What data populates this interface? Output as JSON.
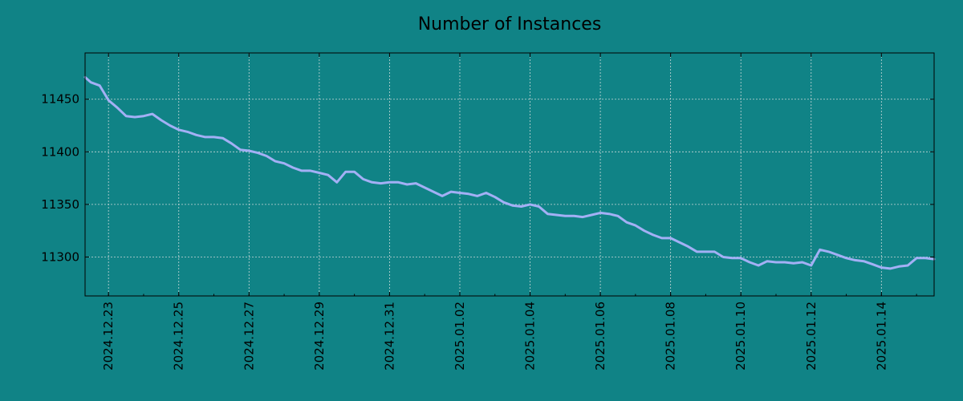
{
  "chart_data": {
    "type": "line",
    "title": "Number of Instances",
    "xlabel": "",
    "ylabel": "",
    "x_range": [
      "2024-12-22T08:00",
      "2025-01-15T12:00"
    ],
    "ylim": [
      11263,
      11494
    ],
    "grid": true,
    "legend": "none",
    "x_ticks": [
      "2024.12.23",
      "2024.12.25",
      "2024.12.27",
      "2024.12.29",
      "2024.12.31",
      "2025.01.02",
      "2025.01.04",
      "2025.01.06",
      "2025.01.08",
      "2025.01.10",
      "2025.01.12",
      "2025.01.14"
    ],
    "y_ticks": [
      11300,
      11350,
      11400,
      11450
    ],
    "colors": {
      "background": "#108386",
      "line": "#a3b0f5"
    },
    "series": [
      {
        "color": "#a3b0f5",
        "x": [
          "2024-12-22T08:00",
          "2024-12-22T12:00",
          "2024-12-22T18:00",
          "2024-12-23T00:00",
          "2024-12-23T06:00",
          "2024-12-23T12:00",
          "2024-12-23T18:00",
          "2024-12-24T00:00",
          "2024-12-24T06:00",
          "2024-12-24T12:00",
          "2024-12-24T18:00",
          "2024-12-25T00:00",
          "2024-12-25T06:00",
          "2024-12-25T12:00",
          "2024-12-25T18:00",
          "2024-12-26T00:00",
          "2024-12-26T06:00",
          "2024-12-26T12:00",
          "2024-12-26T18:00",
          "2024-12-27T00:00",
          "2024-12-27T06:00",
          "2024-12-27T12:00",
          "2024-12-27T18:00",
          "2024-12-28T00:00",
          "2024-12-28T06:00",
          "2024-12-28T12:00",
          "2024-12-28T18:00",
          "2024-12-29T00:00",
          "2024-12-29T06:00",
          "2024-12-29T12:00",
          "2024-12-29T18:00",
          "2024-12-30T00:00",
          "2024-12-30T06:00",
          "2024-12-30T12:00",
          "2024-12-30T18:00",
          "2024-12-31T00:00",
          "2024-12-31T06:00",
          "2024-12-31T12:00",
          "2024-12-31T18:00",
          "2025-01-01T00:00",
          "2025-01-01T06:00",
          "2025-01-01T12:00",
          "2025-01-01T18:00",
          "2025-01-02T00:00",
          "2025-01-02T06:00",
          "2025-01-02T12:00",
          "2025-01-02T18:00",
          "2025-01-03T00:00",
          "2025-01-03T06:00",
          "2025-01-03T12:00",
          "2025-01-03T18:00",
          "2025-01-04T00:00",
          "2025-01-04T06:00",
          "2025-01-04T12:00",
          "2025-01-04T18:00",
          "2025-01-05T00:00",
          "2025-01-05T06:00",
          "2025-01-05T12:00",
          "2025-01-05T18:00",
          "2025-01-06T00:00",
          "2025-01-06T06:00",
          "2025-01-06T12:00",
          "2025-01-06T18:00",
          "2025-01-07T00:00",
          "2025-01-07T06:00",
          "2025-01-07T12:00",
          "2025-01-07T18:00",
          "2025-01-08T00:00",
          "2025-01-08T06:00",
          "2025-01-08T12:00",
          "2025-01-08T18:00",
          "2025-01-09T00:00",
          "2025-01-09T06:00",
          "2025-01-09T12:00",
          "2025-01-09T18:00",
          "2025-01-10T00:00",
          "2025-01-10T06:00",
          "2025-01-10T12:00",
          "2025-01-10T18:00",
          "2025-01-11T00:00",
          "2025-01-11T06:00",
          "2025-01-11T12:00",
          "2025-01-11T18:00",
          "2025-01-12T00:00",
          "2025-01-12T06:00",
          "2025-01-12T12:00",
          "2025-01-12T18:00",
          "2025-01-13T00:00",
          "2025-01-13T06:00",
          "2025-01-13T12:00",
          "2025-01-13T18:00",
          "2025-01-14T00:00",
          "2025-01-14T06:00",
          "2025-01-14T12:00",
          "2025-01-14T18:00",
          "2025-01-15T00:00",
          "2025-01-15T06:00",
          "2025-01-15T12:00"
        ],
        "values": [
          11471,
          11466,
          11463,
          11449,
          11442,
          11434,
          11433,
          11434,
          11436,
          11430,
          11425,
          11421,
          11419,
          11416,
          11414,
          11414,
          11413,
          11408,
          11402,
          11401,
          11399,
          11396,
          11391,
          11389,
          11385,
          11382,
          11382,
          11380,
          11378,
          11371,
          11381,
          11381,
          11374,
          11371,
          11370,
          11371,
          11371,
          11369,
          11370,
          11366,
          11362,
          11358,
          11362,
          11361,
          11360,
          11358,
          11361,
          11357,
          11352,
          11349,
          11348,
          11350,
          11348,
          11341,
          11340,
          11339,
          11339,
          11338,
          11340,
          11342,
          11341,
          11339,
          11333,
          11330,
          11325,
          11321,
          11318,
          11318,
          11314,
          11310,
          11305,
          11305,
          11305,
          11300,
          11299,
          11299,
          11295,
          11292,
          11296,
          11295,
          11295,
          11294,
          11295,
          11292,
          11307,
          11305,
          11302,
          11299,
          11297,
          11296,
          11293,
          11290,
          11289,
          11291,
          11292,
          11299,
          11299,
          11298
        ]
      }
    ]
  }
}
